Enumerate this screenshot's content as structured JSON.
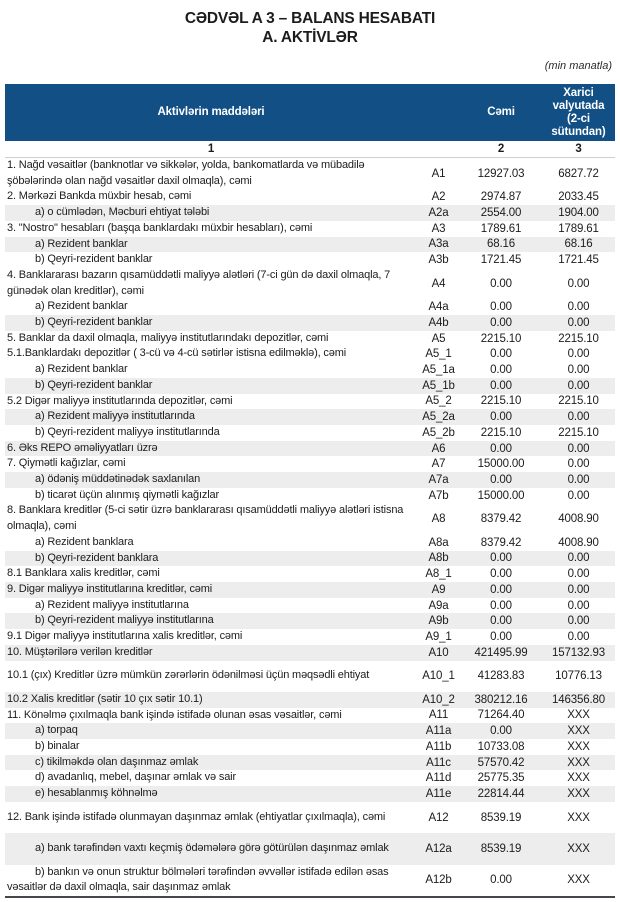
{
  "page": {
    "title_line1": "CƏDVƏL A 3 – BALANS HESABATI",
    "title_line2": "A. AKTİVLƏR",
    "unit_note": "(min manatla)"
  },
  "colors": {
    "header_bg": "#114f84",
    "header_text": "#ffffff",
    "stripe_bg": "#ededed",
    "text": "#1c1c1c",
    "bottom_border": "#44474b"
  },
  "table": {
    "headers": {
      "items": "Aktivlərin maddələri",
      "total": "Cəmi",
      "foreign": "Xarici valyutada (2-ci sütundan)"
    },
    "column_numbers": [
      "1",
      "2",
      "3"
    ],
    "rows": [
      {
        "label": "1. Nağd vəsaitlər (banknotlar və sikkələr, yolda, bankomatlarda və mübadilə şöbələrində olan nağd vəsaitlər daxil olmaqla), cəmi",
        "code": "A1",
        "total": "12927.03",
        "foreign": "6827.72",
        "shaded": false,
        "indent": false,
        "lines": 2
      },
      {
        "label": "2. Mərkəzi Bankda müxbir hesab, cəmi",
        "code": "A2",
        "total": "2974.87",
        "foreign": "2033.45",
        "shaded": false,
        "indent": false,
        "lines": 1
      },
      {
        "label": "a) o cümlədən, Məcburi ehtiyat tələbi",
        "code": "A2a",
        "total": "2554.00",
        "foreign": "1904.00",
        "shaded": true,
        "indent": true,
        "lines": 1
      },
      {
        "label": "3. \"Nostro\" hesabları (başqa banklardakı müxbir hesabları), cəmi",
        "code": "A3",
        "total": "1789.61",
        "foreign": "1789.61",
        "shaded": false,
        "indent": false,
        "lines": 1
      },
      {
        "label": "a) Rezident banklar",
        "code": "A3a",
        "total": "68.16",
        "foreign": "68.16",
        "shaded": true,
        "indent": true,
        "lines": 1
      },
      {
        "label": "b) Qeyri-rezident banklar",
        "code": "A3b",
        "total": "1721.45",
        "foreign": "1721.45",
        "shaded": false,
        "indent": true,
        "lines": 1
      },
      {
        "label": "4. Banklararası bazarın qısamüddətli maliyyə alətləri (7-ci gün də daxil olmaqla, 7 günədək olan kreditlər), cəmi",
        "code": "A4",
        "total": "0.00",
        "foreign": "0.00",
        "shaded": false,
        "indent": false,
        "lines": 2
      },
      {
        "label": "a) Rezident banklar",
        "code": "A4a",
        "total": "0.00",
        "foreign": "0.00",
        "shaded": false,
        "indent": true,
        "lines": 1
      },
      {
        "label": "b) Qeyri-rezident banklar",
        "code": "A4b",
        "total": "0.00",
        "foreign": "0.00",
        "shaded": true,
        "indent": true,
        "lines": 1
      },
      {
        "label": "5. Banklar da daxil olmaqla, maliyyə institutlarındakı depozitlər, cəmi",
        "code": "A5",
        "total": "2215.10",
        "foreign": "2215.10",
        "shaded": false,
        "indent": false,
        "lines": 1
      },
      {
        "label": "5.1.Banklardakı depozitlər ( 3-cü və 4-cü sətirlər istisna edilməklə), cəmi",
        "code": "A5_1",
        "total": "0.00",
        "foreign": "0.00",
        "shaded": false,
        "indent": false,
        "lines": 1
      },
      {
        "label": "a) Rezident banklar",
        "code": "A5_1a",
        "total": "0.00",
        "foreign": "0.00",
        "shaded": false,
        "indent": true,
        "lines": 1
      },
      {
        "label": "b) Qeyri-rezident banklar",
        "code": "A5_1b",
        "total": "0.00",
        "foreign": "0.00",
        "shaded": true,
        "indent": true,
        "lines": 1
      },
      {
        "label": "5.2 Digər maliyyə institutlarında depozitlər, cəmi",
        "code": "A5_2",
        "total": "2215.10",
        "foreign": "2215.10",
        "shaded": false,
        "indent": false,
        "lines": 1
      },
      {
        "label": "a) Rezident maliyyə institutlarında",
        "code": "A5_2a",
        "total": "0.00",
        "foreign": "0.00",
        "shaded": true,
        "indent": true,
        "lines": 1
      },
      {
        "label": "b) Qeyri-rezident maliyyə institutlarında",
        "code": "A5_2b",
        "total": "2215.10",
        "foreign": "2215.10",
        "shaded": false,
        "indent": true,
        "lines": 1
      },
      {
        "label": "6. Əks REPO əməliyyatları üzrə",
        "code": "A6",
        "total": "0.00",
        "foreign": "0.00",
        "shaded": true,
        "indent": false,
        "lines": 1
      },
      {
        "label": "7. Qiymətli kağızlar, cəmi",
        "code": "A7",
        "total": "15000.00",
        "foreign": "0.00",
        "shaded": false,
        "indent": false,
        "lines": 1
      },
      {
        "label": "a) ödəniş müddətinədək saxlanılan",
        "code": "A7a",
        "total": "0.00",
        "foreign": "0.00",
        "shaded": true,
        "indent": true,
        "lines": 1
      },
      {
        "label": "b) ticarət üçün alınmış qiymətli kağızlar",
        "code": "A7b",
        "total": "15000.00",
        "foreign": "0.00",
        "shaded": false,
        "indent": true,
        "lines": 1
      },
      {
        "label": "8. Banklara kreditlər (5-ci sətir üzrə banklararası qısamüddətli maliyyə alətləri istisna olmaqla), cəmi",
        "code": "A8",
        "total": "8379.42",
        "foreign": "4008.90",
        "shaded": false,
        "indent": false,
        "lines": 2
      },
      {
        "label": "a) Rezident banklara",
        "code": "A8a",
        "total": "8379.42",
        "foreign": "4008.90",
        "shaded": false,
        "indent": true,
        "lines": 1
      },
      {
        "label": "b) Qeyri-rezident banklara",
        "code": "A8b",
        "total": "0.00",
        "foreign": "0.00",
        "shaded": true,
        "indent": true,
        "lines": 1
      },
      {
        "label": "8.1 Banklara xalis kreditlər, cəmi",
        "code": "A8_1",
        "total": "0.00",
        "foreign": "0.00",
        "shaded": false,
        "indent": false,
        "lines": 1
      },
      {
        "label": "9. Digər maliyyə institutlarına kreditlər, cəmi",
        "code": "A9",
        "total": "0.00",
        "foreign": "0.00",
        "shaded": true,
        "indent": false,
        "lines": 1
      },
      {
        "label": "a) Rezident maliyyə institutlarına",
        "code": "A9a",
        "total": "0.00",
        "foreign": "0.00",
        "shaded": false,
        "indent": true,
        "lines": 1
      },
      {
        "label": "b) Qeyri-rezident maliyyə institutlarına",
        "code": "A9b",
        "total": "0.00",
        "foreign": "0.00",
        "shaded": true,
        "indent": true,
        "lines": 1
      },
      {
        "label": "9.1 Digər maliyyə institutlarına xalis kreditlər, cəmi",
        "code": "A9_1",
        "total": "0.00",
        "foreign": "0.00",
        "shaded": false,
        "indent": false,
        "lines": 1
      },
      {
        "label": "10. Müştərilərə verilən kreditlər",
        "code": "A10",
        "total": "421495.99",
        "foreign": "157132.93",
        "shaded": true,
        "indent": false,
        "lines": 1
      },
      {
        "label": "10.1 (çıx) Kreditlər üzrə mümkün zərərlərin ödənilməsi üçün məqsədli ehtiyat",
        "code": "A10_1",
        "total": "41283.83",
        "foreign": "10776.13",
        "shaded": false,
        "indent": false,
        "lines": 2
      },
      {
        "label": "10.2 Xalis kreditlər (sətir 10 çıx sətir 10.1)",
        "code": "A10_2",
        "total": "380212.16",
        "foreign": "146356.80",
        "shaded": true,
        "indent": false,
        "lines": 1
      },
      {
        "label": "11. Könəlmə çıxılmaqla bank işində istifadə olunan əsas vəsaitlər, cəmi",
        "code": "A11",
        "total": "71264.40",
        "foreign": "XXX",
        "shaded": false,
        "indent": false,
        "lines": 1
      },
      {
        "label": "a) torpaq",
        "code": "A11a",
        "total": "0.00",
        "foreign": "XXX",
        "shaded": true,
        "indent": true,
        "lines": 1
      },
      {
        "label": "b) binalar",
        "code": "A11b",
        "total": "10733.08",
        "foreign": "XXX",
        "shaded": false,
        "indent": true,
        "lines": 1
      },
      {
        "label": "c) tikilməkdə olan daşınmaz əmlak",
        "code": "A11c",
        "total": "57570.42",
        "foreign": "XXX",
        "shaded": true,
        "indent": true,
        "lines": 1
      },
      {
        "label": "d) avadanlıq, mebel, daşınar əmlak və sair",
        "code": "A11d",
        "total": "25775.35",
        "foreign": "XXX",
        "shaded": false,
        "indent": true,
        "lines": 1
      },
      {
        "label": "e) hesablanmış köhnəlmə",
        "code": "A11e",
        "total": "22814.44",
        "foreign": "XXX",
        "shaded": true,
        "indent": true,
        "lines": 1
      },
      {
        "label": "12. Bank işində istifadə olunmayan daşınmaz əmlak (ehtiyatlar çıxılmaqla), cəmi",
        "code": "A12",
        "total": "8539.19",
        "foreign": "XXX",
        "shaded": false,
        "indent": false,
        "lines": 2
      },
      {
        "label": "a) bank tərəfindən vaxtı keçmiş ödəmələrə görə götürülən daşınmaz əmlak",
        "code": "A12a",
        "total": "8539.19",
        "foreign": "XXX",
        "shaded": true,
        "indent": true,
        "lines": 2
      },
      {
        "label": "b) bankın və onun struktur bölmələri tərəfindən əvvəllər istifadə edilən əsas vəsaitlər də daxil olmaqla, sair daşınmaz əmlak",
        "code": "A12b",
        "total": "0.00",
        "foreign": "XXX",
        "shaded": false,
        "indent": true,
        "lines": 2
      }
    ]
  }
}
